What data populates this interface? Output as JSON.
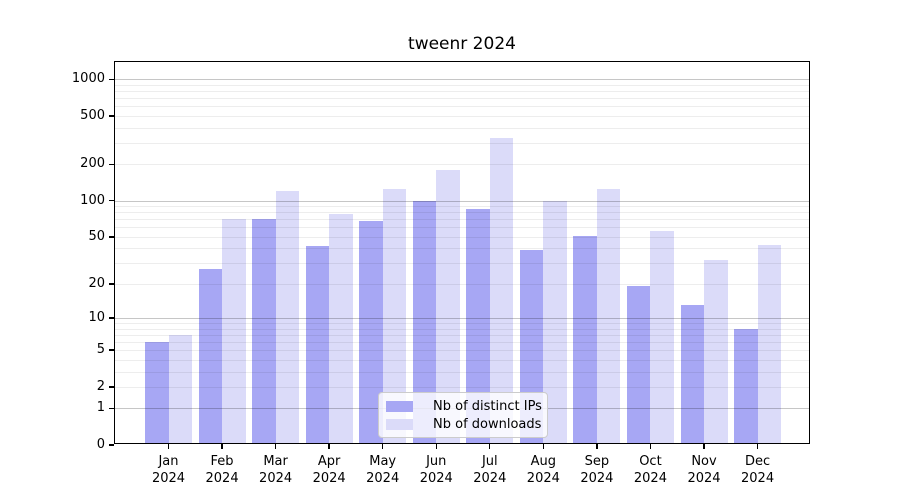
{
  "title": "tweenr 2024",
  "chart_data": {
    "type": "bar",
    "title": "tweenr 2024",
    "categories": [
      "Jan 2024",
      "Feb 2024",
      "Mar 2024",
      "Apr 2024",
      "May 2024",
      "Jun 2024",
      "Jul 2024",
      "Aug 2024",
      "Sep 2024",
      "Oct 2024",
      "Nov 2024",
      "Dec 2024"
    ],
    "month_labels": [
      "Jan",
      "Feb",
      "Mar",
      "Apr",
      "May",
      "Jun",
      "Jul",
      "Aug",
      "Sep",
      "Oct",
      "Nov",
      "Dec"
    ],
    "year_label": "2024",
    "series": [
      {
        "name": "Nb of distinct IPs",
        "color": "#a7a7f4",
        "values": [
          6,
          27,
          70,
          42,
          68,
          100,
          86,
          39,
          51,
          19,
          13,
          8
        ]
      },
      {
        "name": "Nb of downloads",
        "color": "#dbdbf9",
        "values": [
          7,
          70,
          120,
          77,
          126,
          180,
          330,
          100,
          125,
          56,
          32,
          43
        ]
      }
    ],
    "y_scale": "log1p",
    "y_tick_labels": [
      "0",
      "1",
      "2",
      "5",
      "10",
      "20",
      "50",
      "100",
      "200",
      "500",
      "1000"
    ],
    "y_tick_values": [
      0,
      1,
      2,
      5,
      10,
      20,
      50,
      100,
      200,
      500,
      1000
    ],
    "ylim": [
      0,
      1390
    ],
    "xlabel": "",
    "ylabel": "",
    "grid": {
      "orientation": "horizontal",
      "major_values": [
        1,
        10,
        100,
        1000
      ],
      "minor_values": [
        2,
        3,
        4,
        5,
        6,
        7,
        8,
        9,
        20,
        30,
        40,
        50,
        60,
        70,
        80,
        90,
        200,
        300,
        400,
        500,
        600,
        700,
        800,
        900
      ],
      "major_color": "#c6c6c6",
      "minor_color": "#ededed"
    },
    "legend_position": "lower center"
  },
  "colors": {
    "background": "#ffffff",
    "axis": "#000000",
    "text": "#000000",
    "legend_border": "#cccccc"
  }
}
